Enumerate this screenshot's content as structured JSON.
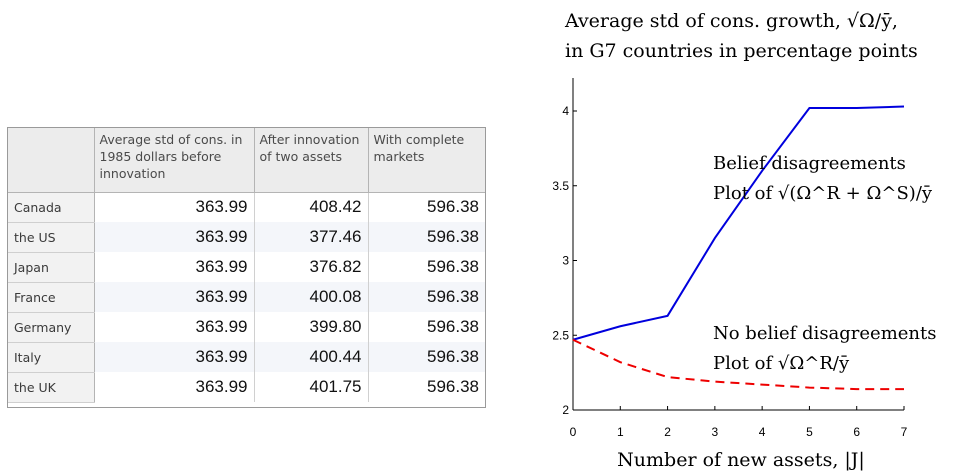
{
  "table": {
    "headers": [
      "",
      "Average std of cons. in 1985 dollars before innovation",
      "After innovation of two assets",
      "With complete markets"
    ],
    "rows": [
      {
        "country": "Canada",
        "before": "363.99",
        "two_assets": "408.42",
        "complete": "596.38"
      },
      {
        "country": "the US",
        "before": "363.99",
        "two_assets": "377.46",
        "complete": "596.38"
      },
      {
        "country": "Japan",
        "before": "363.99",
        "two_assets": "376.82",
        "complete": "596.38"
      },
      {
        "country": "France",
        "before": "363.99",
        "two_assets": "400.08",
        "complete": "596.38"
      },
      {
        "country": "Germany",
        "before": "363.99",
        "two_assets": "399.80",
        "complete": "596.38"
      },
      {
        "country": "Italy",
        "before": "363.99",
        "two_assets": "400.44",
        "complete": "596.38"
      },
      {
        "country": "the UK",
        "before": "363.99",
        "two_assets": "401.75",
        "complete": "596.38"
      }
    ]
  },
  "chart_data": {
    "type": "line",
    "title_line1": "Average std of cons. growth, √Ω/ȳ,",
    "title_line2": "in G7 countries in percentage points",
    "xlabel": "Number of new assets, |J|",
    "ylabel": "",
    "xlim": [
      0,
      7
    ],
    "ylim": [
      2,
      4.2
    ],
    "x_ticks": [
      "0",
      "1",
      "2",
      "3",
      "4",
      "5",
      "6",
      "7"
    ],
    "y_ticks": [
      "2",
      "2.5",
      "3",
      "3.5",
      "4"
    ],
    "series": [
      {
        "style": "solid",
        "color": "#0000dd",
        "x": [
          0,
          1,
          2,
          3,
          4,
          5,
          6,
          7
        ],
        "values": [
          2.47,
          2.56,
          2.63,
          3.15,
          3.6,
          4.02,
          4.02,
          4.03
        ]
      },
      {
        "style": "dashed",
        "color": "#ee0000",
        "x": [
          0,
          1,
          2,
          3,
          4,
          5,
          6,
          7
        ],
        "values": [
          2.47,
          2.32,
          2.22,
          2.19,
          2.17,
          2.15,
          2.14,
          2.14
        ]
      }
    ],
    "annotations": [
      {
        "line1": "Belief disagreements",
        "line2_prefix": "Plot of",
        "line2_formula": "√(Ω^R + Ω^S)/ȳ"
      },
      {
        "line1": "No belief disagreements",
        "line2_prefix": "Plot of",
        "line2_formula": "√Ω^R/ȳ"
      }
    ]
  }
}
